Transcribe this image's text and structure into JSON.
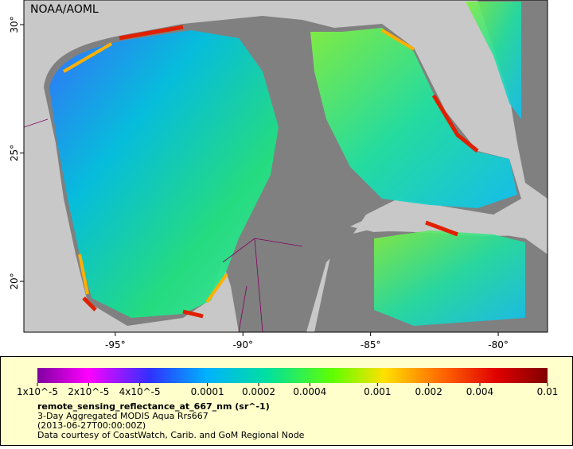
{
  "map": {
    "credit": "NOAA/AOML",
    "xlim": [
      -98.58,
      -78.07
    ],
    "ylim": [
      18.02,
      30.96
    ],
    "xticks": [
      {
        "value": -95,
        "label": "-95°"
      },
      {
        "value": -90,
        "label": "-90°"
      },
      {
        "value": -85,
        "label": "-85°"
      },
      {
        "value": -80,
        "label": "-80°"
      }
    ],
    "yticks": [
      {
        "value": 20,
        "label": "20°"
      },
      {
        "value": 25,
        "label": "25°"
      },
      {
        "value": 30,
        "label": "30°"
      }
    ],
    "colorbar": {
      "scale": "log",
      "lim": [
        1e-05,
        0.01
      ],
      "ticks": [
        {
          "value": 1e-05,
          "label": "1x10^-5"
        },
        {
          "value": 2e-05,
          "label": "2x10^-5"
        },
        {
          "value": 4e-05,
          "label": "4x10^-5"
        },
        0.0001,
        0.0002,
        0.0004,
        0.001,
        0.002,
        0.004,
        0.01
      ]
    },
    "variable": "remote_sensing_reflectance_at_667_nm (sr^-1)",
    "description": "3-Day Aggregated MODIS Aqua Rrs667",
    "time": "(2013-06-27T00:00:00Z)",
    "source": "Data courtesy of CoastWatch, Carib. and GoM Regional Node"
  }
}
